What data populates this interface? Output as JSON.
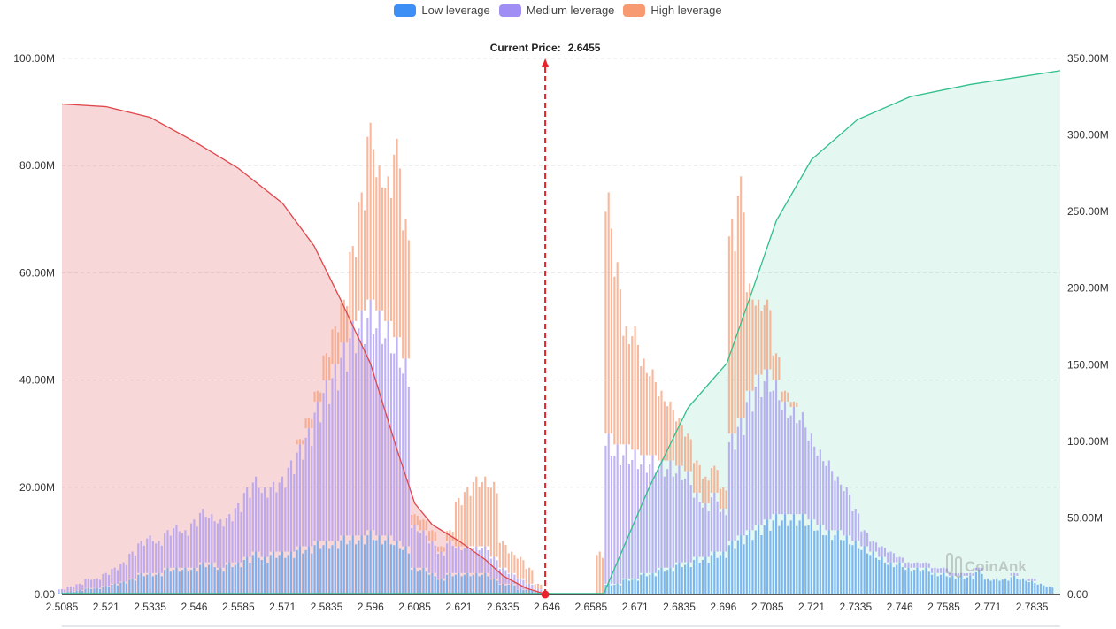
{
  "legend": [
    {
      "label": "Low leverage",
      "color": "#3d8ef5"
    },
    {
      "label": "Medium leverage",
      "color": "#a08ef4"
    },
    {
      "label": "High leverage",
      "color": "#f79a72"
    }
  ],
  "current_price": {
    "label": "Current Price:",
    "value": "2.6455",
    "price": 2.6455
  },
  "watermark": "CoinAnk",
  "chart_data": {
    "type": "bar",
    "title": "",
    "xlabel": "",
    "ylabel": "",
    "x_ticks": [
      "2.5085",
      "2.521",
      "2.5335",
      "2.546",
      "2.5585",
      "2.571",
      "2.5835",
      "2.596",
      "2.6085",
      "2.621",
      "2.6335",
      "2.646",
      "2.6585",
      "2.671",
      "2.6835",
      "2.696",
      "2.7085",
      "2.721",
      "2.7335",
      "2.746",
      "2.7585",
      "2.771",
      "2.7835"
    ],
    "xlim": [
      2.5085,
      2.7915
    ],
    "bin_start": 2.5085,
    "bin_step": 0.0025,
    "y_left": {
      "ticks": [
        "0.00",
        "20.00M",
        "40.00M",
        "60.00M",
        "80.00M",
        "100.00M"
      ],
      "range": [
        0,
        100
      ]
    },
    "y_right": {
      "ticks": [
        "0.00",
        "50.00M",
        "100.00M",
        "150.00M",
        "200.00M",
        "250.00M",
        "300.00M",
        "350.00M"
      ],
      "range": [
        0,
        350
      ]
    },
    "units": "M",
    "grid": true,
    "legend_position": "top-center",
    "series": [
      {
        "name": "Low leverage",
        "stack": "liq",
        "values": [
          0.4,
          0.6,
          0.8,
          1.2,
          1.2,
          1.6,
          2,
          2.4,
          3,
          4,
          4,
          4,
          5,
          5,
          5,
          5,
          6,
          6,
          5,
          6,
          6,
          7,
          8,
          7,
          8,
          8,
          8,
          9,
          9,
          10,
          10,
          10,
          11,
          11,
          11,
          12,
          11,
          11,
          10,
          9,
          5,
          5,
          4,
          3,
          4,
          4,
          4,
          4,
          4,
          3,
          2,
          2,
          1,
          1,
          0.5,
          0,
          0,
          0,
          0,
          0,
          0,
          0,
          2,
          2,
          3,
          3,
          4,
          4,
          5,
          5,
          6,
          6,
          7,
          7,
          8,
          8,
          10,
          11,
          12,
          13,
          14,
          15,
          15,
          15,
          15,
          14,
          13,
          12,
          12,
          11,
          10,
          9,
          8,
          7,
          6,
          6,
          5,
          5,
          5,
          4,
          4,
          3.5,
          3.5,
          3.5,
          4.5,
          3,
          3,
          3,
          3.5,
          3,
          2.5,
          2,
          1.5,
          0
        ]
      },
      {
        "name": "Medium leverage",
        "stack": "liq",
        "values": [
          0.6,
          0.9,
          1.2,
          1.8,
          1.8,
          2.4,
          3,
          3.6,
          5,
          6,
          7,
          6,
          7,
          8,
          7,
          9,
          10,
          9,
          9,
          9,
          11,
          13,
          14,
          13,
          13,
          14,
          17,
          19,
          22,
          26,
          30,
          33,
          36,
          40,
          42,
          43,
          42,
          40,
          38,
          35,
          8,
          7,
          6,
          5,
          6,
          5,
          5,
          5,
          5,
          4,
          3,
          2,
          2,
          1,
          0.5,
          0,
          0,
          0,
          0,
          0,
          0,
          0,
          28,
          26,
          25,
          24,
          22,
          22,
          20,
          20,
          18,
          17,
          12,
          10,
          11,
          8,
          20,
          22,
          26,
          28,
          28,
          25,
          21,
          20,
          19,
          16,
          14,
          13,
          10,
          9,
          6,
          3,
          2,
          2,
          2,
          1,
          1,
          1,
          1,
          1,
          1,
          0.5,
          0.5,
          0.5,
          0.5,
          0,
          0,
          0,
          0.5,
          0,
          0.5,
          0,
          0,
          0
        ]
      },
      {
        "name": "High leverage",
        "stack": "liq",
        "values": [
          0,
          0,
          0,
          0,
          0,
          0,
          0,
          0,
          0,
          0,
          0,
          0,
          0,
          0,
          0,
          0,
          0,
          0,
          0,
          0,
          0,
          0,
          0,
          0,
          0,
          0,
          0,
          1,
          2,
          2,
          5,
          7,
          8,
          14,
          22,
          33,
          27,
          27,
          37,
          26,
          2,
          2,
          2,
          1,
          2,
          9,
          11,
          13,
          13,
          14,
          5,
          4,
          4,
          3,
          1,
          0,
          0,
          0,
          0,
          0,
          0,
          8,
          45,
          34,
          22,
          23,
          18,
          16,
          13,
          11,
          9,
          7,
          6,
          5,
          5,
          4,
          40,
          45,
          20,
          14,
          13,
          5,
          2,
          1,
          0,
          0,
          0,
          0,
          0,
          0,
          0,
          0,
          0,
          0,
          0,
          0,
          0,
          0,
          0,
          0,
          0,
          0,
          0,
          0,
          0,
          0,
          0,
          0,
          0,
          0,
          0,
          0,
          0,
          0
        ]
      }
    ],
    "cumulative_short": {
      "axis": "left",
      "color": "#e0474c",
      "x": [
        2.5085,
        2.521,
        2.5335,
        2.546,
        2.5585,
        2.571,
        2.58,
        2.5875,
        2.596,
        2.6035,
        2.6085,
        2.6135,
        2.621,
        2.6285,
        2.6335,
        2.64,
        2.646
      ],
      "y": [
        91.5,
        91,
        89,
        84.5,
        79.5,
        73,
        65,
        55,
        43,
        27,
        17,
        13,
        10,
        6.5,
        3.5,
        1.2,
        0
      ]
    },
    "cumulative_long": {
      "axis": "right",
      "color": "#2fbf8a",
      "x": [
        2.646,
        2.662,
        2.675,
        2.686,
        2.697,
        2.704,
        2.711,
        2.721,
        2.734,
        2.749,
        2.766,
        2.7915
      ],
      "y": [
        0,
        0,
        70,
        122,
        151,
        197,
        244,
        284,
        310,
        325,
        333,
        342
      ]
    }
  }
}
